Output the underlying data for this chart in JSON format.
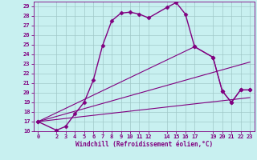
{
  "xlabel": "Windchill (Refroidissement éolien,°C)",
  "background_color": "#c8f0f0",
  "grid_color": "#a0c8c8",
  "line_color": "#800080",
  "ylim": [
    16,
    29.5
  ],
  "xlim": [
    -0.5,
    23.5
  ],
  "yticks": [
    16,
    17,
    18,
    19,
    20,
    21,
    22,
    23,
    24,
    25,
    26,
    27,
    28,
    29
  ],
  "xticks": [
    0,
    2,
    3,
    4,
    5,
    6,
    7,
    8,
    9,
    10,
    11,
    12,
    14,
    15,
    16,
    17,
    19,
    20,
    21,
    22,
    23
  ],
  "series": [
    {
      "x": [
        0,
        2,
        3,
        4,
        5,
        6,
        7,
        8,
        9,
        10,
        11,
        12,
        14,
        15,
        16,
        17,
        19,
        20,
        21,
        22,
        23
      ],
      "y": [
        17.0,
        16.1,
        16.5,
        17.8,
        19.0,
        21.3,
        24.9,
        27.5,
        28.3,
        28.4,
        28.2,
        27.8,
        28.9,
        29.4,
        28.2,
        24.8,
        23.7,
        20.2,
        19.0,
        20.3,
        20.3
      ],
      "marker": "D",
      "markersize": 2.5,
      "linewidth": 1.0
    },
    {
      "x": [
        0,
        23
      ],
      "y": [
        17.0,
        23.2
      ],
      "marker": null,
      "markersize": 0,
      "linewidth": 0.8
    },
    {
      "x": [
        0,
        23
      ],
      "y": [
        17.0,
        19.5
      ],
      "marker": null,
      "markersize": 0,
      "linewidth": 0.8
    },
    {
      "x": [
        0,
        17,
        19,
        20,
        21,
        22,
        23
      ],
      "y": [
        17.0,
        24.8,
        23.7,
        20.2,
        19.0,
        20.3,
        20.3
      ],
      "marker": "D",
      "markersize": 2.5,
      "linewidth": 0.8
    }
  ]
}
